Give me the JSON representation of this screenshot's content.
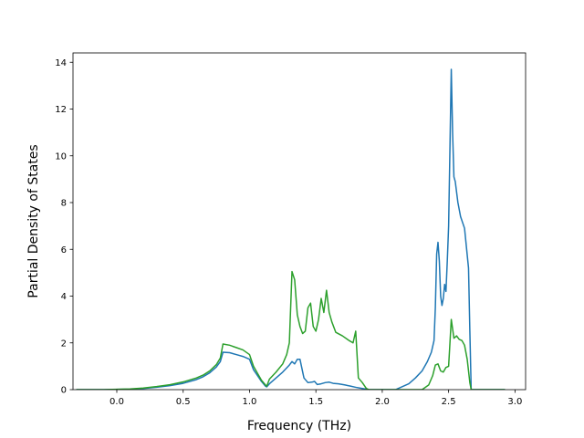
{
  "chart_data": {
    "type": "line",
    "title": "",
    "xlabel": "Frequency (THz)",
    "ylabel": "Partial Density of States",
    "xlim": [
      -0.33,
      3.08
    ],
    "ylim": [
      0,
      14.4
    ],
    "xticks": [
      0.0,
      0.5,
      1.0,
      1.5,
      2.0,
      2.5,
      3.0
    ],
    "xtick_labels": [
      "0.0",
      "0.5",
      "1.0",
      "1.5",
      "2.0",
      "2.5",
      "3.0"
    ],
    "yticks": [
      0,
      2,
      4,
      6,
      8,
      10,
      12,
      14
    ],
    "ytick_labels": [
      "0",
      "2",
      "4",
      "6",
      "8",
      "10",
      "12",
      "14"
    ],
    "grid": false,
    "legend": "none",
    "series": [
      {
        "color": "#1f77b4",
        "x": [
          -0.3,
          -0.1,
          0.1,
          0.2,
          0.3,
          0.4,
          0.5,
          0.6,
          0.65,
          0.7,
          0.75,
          0.78,
          0.8,
          0.85,
          0.9,
          0.95,
          1.0,
          1.03,
          1.06,
          1.09,
          1.12,
          1.13,
          1.15,
          1.2,
          1.25,
          1.3,
          1.32,
          1.34,
          1.36,
          1.38,
          1.41,
          1.44,
          1.47,
          1.49,
          1.51,
          1.54,
          1.57,
          1.6,
          1.63,
          1.67,
          1.72,
          1.76,
          1.8,
          1.85,
          1.88,
          1.9,
          2.0,
          2.1,
          2.2,
          2.25,
          2.3,
          2.34,
          2.37,
          2.39,
          2.4,
          2.41,
          2.42,
          2.43,
          2.44,
          2.45,
          2.46,
          2.47,
          2.48,
          2.49,
          2.5,
          2.52,
          2.53,
          2.54,
          2.55,
          2.57,
          2.59,
          2.62,
          2.65,
          2.66,
          2.67,
          2.7,
          2.8,
          2.92
        ],
        "values": [
          0.0,
          0.0,
          0.02,
          0.05,
          0.1,
          0.17,
          0.27,
          0.43,
          0.55,
          0.72,
          0.97,
          1.2,
          1.6,
          1.58,
          1.5,
          1.42,
          1.3,
          0.85,
          0.6,
          0.35,
          0.15,
          0.12,
          0.25,
          0.5,
          0.75,
          1.05,
          1.2,
          1.1,
          1.3,
          1.3,
          0.5,
          0.3,
          0.32,
          0.35,
          0.22,
          0.25,
          0.3,
          0.32,
          0.27,
          0.25,
          0.2,
          0.15,
          0.1,
          0.05,
          0.02,
          0.0,
          0.0,
          0.0,
          0.25,
          0.5,
          0.8,
          1.2,
          1.6,
          2.1,
          3.5,
          5.8,
          6.3,
          5.5,
          4.0,
          3.6,
          3.9,
          4.5,
          4.2,
          5.5,
          7.0,
          13.7,
          11.0,
          9.1,
          8.9,
          8.0,
          7.4,
          6.9,
          5.2,
          2.5,
          0.0,
          0.0,
          0.0,
          0.0
        ]
      },
      {
        "color": "#2ca02c",
        "x": [
          -0.3,
          -0.1,
          0.1,
          0.2,
          0.3,
          0.4,
          0.5,
          0.6,
          0.65,
          0.7,
          0.75,
          0.78,
          0.8,
          0.85,
          0.9,
          0.95,
          1.0,
          1.03,
          1.06,
          1.09,
          1.12,
          1.13,
          1.15,
          1.2,
          1.25,
          1.28,
          1.3,
          1.32,
          1.34,
          1.36,
          1.38,
          1.4,
          1.42,
          1.44,
          1.46,
          1.48,
          1.5,
          1.52,
          1.54,
          1.56,
          1.58,
          1.6,
          1.62,
          1.65,
          1.7,
          1.75,
          1.78,
          1.8,
          1.82,
          1.85,
          1.88,
          1.9,
          2.0,
          2.1,
          2.2,
          2.3,
          2.35,
          2.38,
          2.4,
          2.42,
          2.44,
          2.46,
          2.48,
          2.5,
          2.52,
          2.54,
          2.56,
          2.58,
          2.6,
          2.62,
          2.64,
          2.66,
          2.67,
          2.7,
          2.8,
          2.92
        ],
        "values": [
          0.0,
          0.0,
          0.03,
          0.07,
          0.13,
          0.21,
          0.33,
          0.5,
          0.62,
          0.8,
          1.07,
          1.35,
          1.95,
          1.9,
          1.8,
          1.7,
          1.5,
          1.0,
          0.7,
          0.4,
          0.2,
          0.15,
          0.45,
          0.75,
          1.1,
          1.5,
          2.0,
          5.05,
          4.7,
          3.2,
          2.7,
          2.4,
          2.5,
          3.5,
          3.7,
          2.7,
          2.5,
          3.0,
          3.9,
          3.3,
          4.25,
          3.3,
          2.9,
          2.45,
          2.3,
          2.1,
          2.0,
          2.5,
          0.5,
          0.3,
          0.05,
          0.0,
          0.0,
          0.0,
          0.0,
          0.0,
          0.2,
          0.6,
          1.05,
          1.1,
          0.8,
          0.75,
          0.95,
          1.0,
          3.0,
          2.2,
          2.3,
          2.15,
          2.1,
          1.9,
          1.3,
          0.3,
          0.0,
          0.0,
          0.0,
          0.0
        ]
      }
    ]
  }
}
